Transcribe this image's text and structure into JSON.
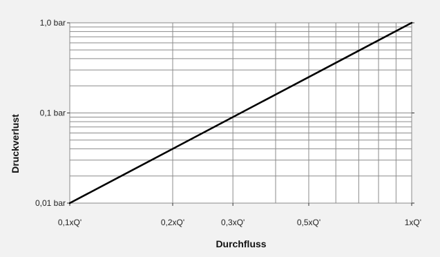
{
  "chart_data": {
    "type": "line",
    "title": "",
    "xlabel": "Durchfluss",
    "ylabel": "Druckverlust",
    "x_scale": "log",
    "y_scale": "log",
    "xlim": [
      0.1,
      1.0
    ],
    "ylim": [
      0.01,
      1.0
    ],
    "grid": true,
    "x_ticks": [
      {
        "value": 0.1,
        "label": "0,1xQ'"
      },
      {
        "value": 0.2,
        "label": "0,2xQ'"
      },
      {
        "value": 0.3,
        "label": "0,3xQ'"
      },
      {
        "value": 0.5,
        "label": "0,5xQ'"
      },
      {
        "value": 1.0,
        "label": "1xQ'"
      }
    ],
    "y_ticks": [
      {
        "value": 0.01,
        "label": "0,01 bar"
      },
      {
        "value": 0.1,
        "label": "0,1 bar"
      },
      {
        "value": 1.0,
        "label": "1,0 bar"
      }
    ],
    "series": [
      {
        "x": [
          0.1,
          1.0
        ],
        "y": [
          0.01,
          1.0
        ]
      }
    ]
  },
  "colors": {
    "background": "#f2f2f2",
    "plot_background": "#ffffff",
    "grid": "#8a8a8a",
    "line": "#000000"
  }
}
